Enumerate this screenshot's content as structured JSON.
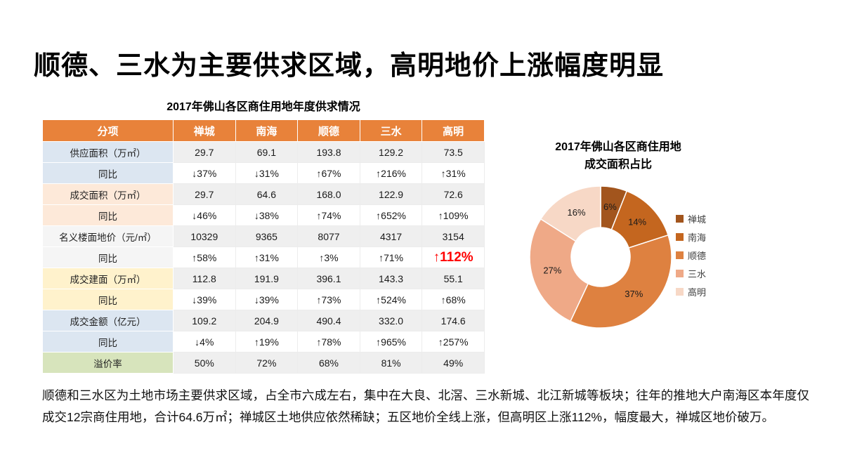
{
  "slide": {
    "title": "顺德、三水为主要供求区域，高明地价上涨幅度明显",
    "paragraph": "顺德和三水区为土地市场主要供求区域，占全市六成左右，集中在大良、北滘、三水新城、北江新城等板块；往年的推地大户南海区本年度仅成交12宗商住用地，合计64.6万㎡；禅城区土地供应依然稀缺；五区地价全线上涨，但高明区上涨112%，幅度最大，禅城区地价破万。"
  },
  "colors": {
    "header_bg": "#e8823a",
    "highlight_red": "#ff0000",
    "band_gray": "#efefef",
    "row_groups": {
      "blue": "#dce6f1",
      "peach": "#fde9d9",
      "plain": "#f5f5f5",
      "yellow": "#fff2cc",
      "green": "#d7e4bc"
    }
  },
  "chart_data": [
    {
      "type": "pie",
      "subtype": "donut",
      "title": "2017年佛山各区商住用地成交面积占比",
      "title_lines": [
        "2017年佛山各区商住用地",
        "成交面积占比"
      ],
      "categories": [
        "禅城",
        "南海",
        "顺德",
        "三水",
        "高明"
      ],
      "values": [
        6,
        14,
        37,
        27,
        16
      ],
      "labels": [
        "6%",
        "14%",
        "37%",
        "27%",
        "16%"
      ],
      "unit": "%",
      "colors": [
        "#a2551d",
        "#c4661f",
        "#de8140",
        "#efa987",
        "#f7d8c6"
      ],
      "legend_position": "right",
      "start_angle_deg": -90,
      "clockwise": true
    },
    {
      "type": "table",
      "title": "2017年佛山各区商住用地年度供求情况",
      "columns": [
        "分项",
        "禅城",
        "南海",
        "顺德",
        "三水",
        "高明"
      ],
      "rows": [
        {
          "label": "供应面积（万㎡）",
          "values": [
            "29.7",
            "69.1",
            "193.8",
            "129.2",
            "73.5"
          ],
          "group": "blue"
        },
        {
          "label": "同比",
          "values": [
            "↓37%",
            "↓31%",
            "↑67%",
            "↑216%",
            "↑31%"
          ],
          "group": "blue"
        },
        {
          "label": "成交面积（万㎡）",
          "values": [
            "29.7",
            "64.6",
            "168.0",
            "122.9",
            "72.6"
          ],
          "group": "peach"
        },
        {
          "label": "同比",
          "values": [
            "↓46%",
            "↓38%",
            "↑74%",
            "↑652%",
            "↑109%"
          ],
          "group": "peach"
        },
        {
          "label": "名义楼面地价（元/㎡）",
          "values": [
            "10329",
            "9365",
            "8077",
            "4317",
            "3154"
          ],
          "group": "plain"
        },
        {
          "label": "同比",
          "values": [
            "↑58%",
            "↑31%",
            "↑3%",
            "↑71%",
            "↑112%"
          ],
          "group": "plain",
          "highlight_last": true
        },
        {
          "label": "成交建面（万㎡）",
          "values": [
            "112.8",
            "191.9",
            "396.1",
            "143.3",
            "55.1"
          ],
          "group": "yellow"
        },
        {
          "label": "同比",
          "values": [
            "↓39%",
            "↓39%",
            "↑73%",
            "↑524%",
            "↑68%"
          ],
          "group": "yellow"
        },
        {
          "label": "成交金额（亿元）",
          "values": [
            "109.2",
            "204.9",
            "490.4",
            "332.0",
            "174.6"
          ],
          "group": "blue"
        },
        {
          "label": "同比",
          "values": [
            "↓4%",
            "↑19%",
            "↑78%",
            "↑965%",
            "↑257%"
          ],
          "group": "blue"
        },
        {
          "label": "溢价率",
          "values": [
            "50%",
            "72%",
            "68%",
            "81%",
            "49%"
          ],
          "group": "green"
        }
      ]
    }
  ]
}
